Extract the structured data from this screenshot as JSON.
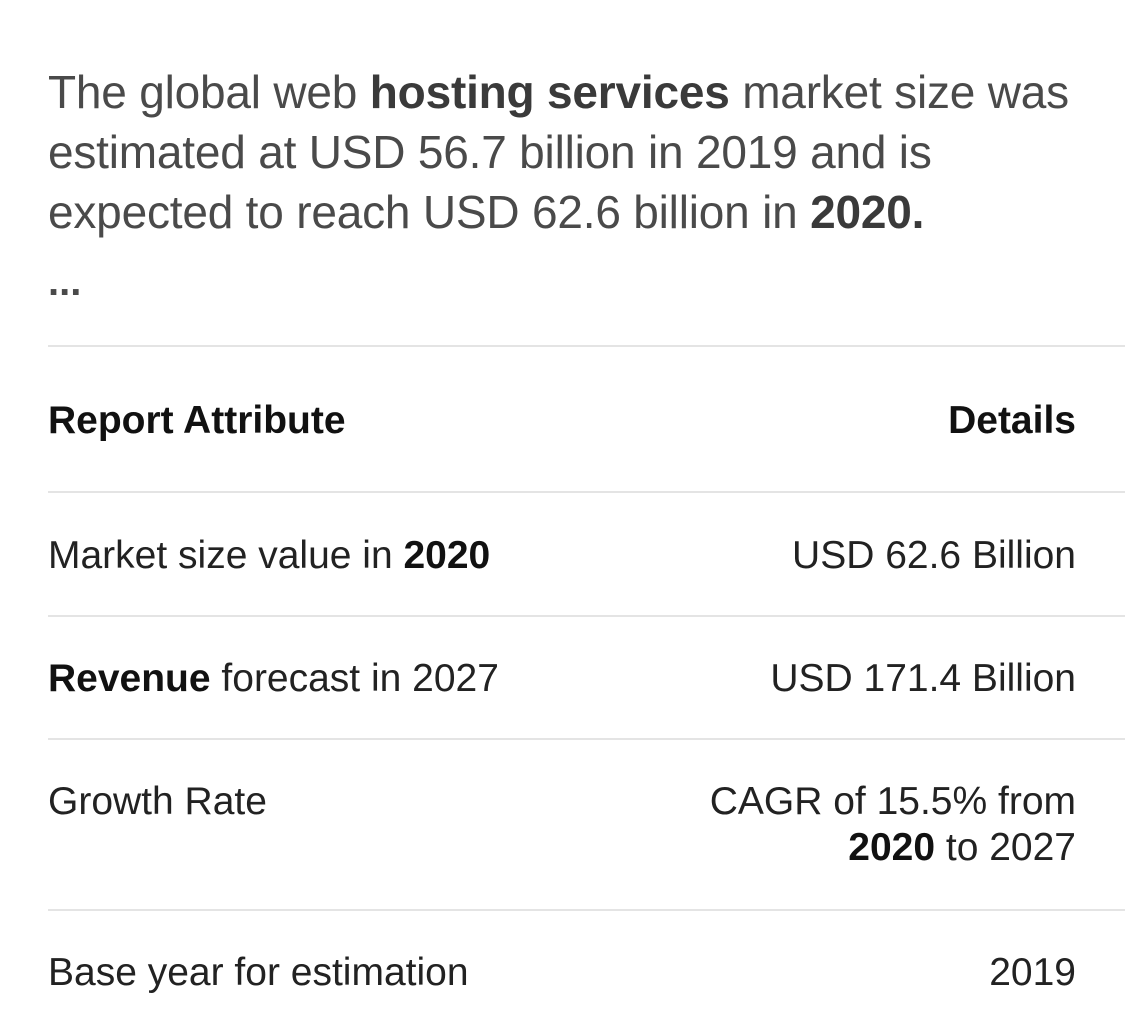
{
  "snippet": {
    "p1": "The global web ",
    "b1": "hosting services",
    "p2": " market size was estimated at USD 56.7 billion in 2019 and is expected to reach USD 62.6 billion in ",
    "b2": "2020",
    "p3": ".",
    "ellipsis": "..."
  },
  "table": {
    "header": {
      "attribute": "Report Attribute",
      "details": "Details"
    },
    "rows": [
      {
        "label_pre": "Market size value in ",
        "label_bold": "2020",
        "value": "USD 62.6 Billion"
      },
      {
        "label_bold": "Revenue",
        "label_post": " forecast in 2027",
        "value": "USD 171.4 Billion"
      },
      {
        "label": "Growth Rate",
        "value_line1": "CAGR of 15.5% from",
        "value_bold": "2020",
        "value_post": " to 2027"
      },
      {
        "label": "Base year for estimation",
        "value": "2019"
      }
    ]
  }
}
